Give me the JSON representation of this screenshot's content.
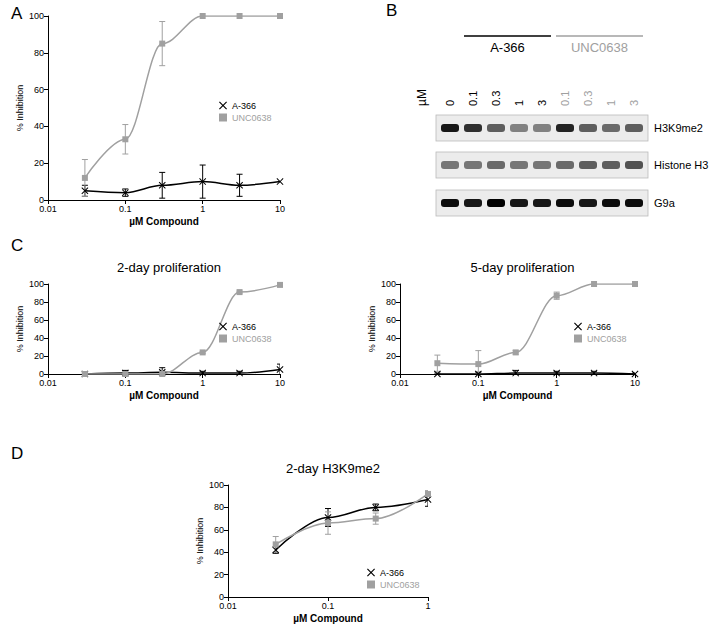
{
  "chart_data": [
    {
      "panel": "A",
      "type": "line",
      "x_label": "µM Compound",
      "y_label": "% Inhibition",
      "log": "x",
      "grid": false,
      "legend": "right",
      "xlim": [
        0.01,
        10
      ],
      "xticks": [
        0.01,
        0.1,
        1,
        10
      ],
      "ylim": [
        0,
        100
      ],
      "yticks": [
        0,
        20,
        40,
        60,
        80,
        100
      ],
      "x": [
        0.03,
        0.1,
        0.3,
        1,
        3,
        10
      ],
      "series": [
        {
          "name": "A-366",
          "color": "#000000",
          "marker": "x",
          "line_style": "solid",
          "values": [
            5,
            4,
            8,
            10,
            8,
            10
          ],
          "error": [
            3,
            2,
            7,
            9,
            6,
            0
          ]
        },
        {
          "name": "UNC0638",
          "color": "#a0a0a0",
          "marker": "square",
          "line_style": "solid",
          "values": [
            12,
            33,
            85,
            100,
            100,
            100
          ],
          "error": [
            10,
            8,
            12,
            0,
            0,
            0
          ]
        }
      ]
    },
    {
      "panel": "C",
      "type": "line",
      "title": "2-day proliferation",
      "x_label": "µM Compound",
      "y_label": "% Inhibition",
      "log": "x",
      "grid": false,
      "legend": "right",
      "xlim": [
        0.01,
        10
      ],
      "xticks": [
        0.01,
        0.1,
        1,
        10
      ],
      "ylim": [
        0,
        100
      ],
      "yticks": [
        0,
        20,
        40,
        60,
        80,
        100
      ],
      "x": [
        0.03,
        0.1,
        0.3,
        1,
        3,
        10
      ],
      "series": [
        {
          "name": "A-366",
          "color": "#000000",
          "marker": "x",
          "line_style": "solid",
          "values": [
            0,
            1,
            2,
            1,
            1,
            5
          ],
          "error": [
            1,
            3,
            5,
            2,
            2,
            6
          ]
        },
        {
          "name": "UNC0638",
          "color": "#a0a0a0",
          "marker": "square",
          "line_style": "solid",
          "values": [
            0,
            0,
            0,
            24,
            91,
            99
          ],
          "error": [
            2,
            2,
            4,
            1,
            1,
            1
          ]
        }
      ]
    },
    {
      "type": "line",
      "title": "5-day proliferation",
      "x_label": "µM Compound",
      "y_label": "% Inhibition",
      "log": "x",
      "grid": false,
      "legend": "right",
      "xlim": [
        0.01,
        10
      ],
      "xticks": [
        0.01,
        0.1,
        1,
        10
      ],
      "ylim": [
        0,
        100
      ],
      "yticks": [
        0,
        20,
        40,
        60,
        80,
        100
      ],
      "x": [
        0.03,
        0.1,
        0.3,
        1,
        3,
        10
      ],
      "series": [
        {
          "name": "A-366",
          "color": "#000000",
          "marker": "x",
          "line_style": "solid",
          "values": [
            0,
            0,
            1,
            1,
            1,
            0
          ],
          "error": [
            1,
            2,
            3,
            2,
            2,
            1
          ]
        },
        {
          "name": "UNC0638",
          "color": "#a0a0a0",
          "marker": "square",
          "line_style": "solid",
          "values": [
            12,
            11,
            24,
            87,
            100,
            100
          ],
          "error": [
            9,
            15,
            2,
            4,
            0,
            0
          ]
        }
      ]
    },
    {
      "panel": "D",
      "type": "line",
      "title": "2-day H3K9me2",
      "x_label": "µM Compound",
      "y_label": "% Inhibition",
      "log": "x",
      "grid": false,
      "legend": "lower right",
      "xlim": [
        0.01,
        1
      ],
      "xticks": [
        0.01,
        0.1,
        1
      ],
      "ylim": [
        0,
        100
      ],
      "yticks": [
        0,
        20,
        40,
        60,
        80,
        100
      ],
      "x": [
        0.03,
        0.1,
        0.3,
        1
      ],
      "series": [
        {
          "name": "A-366",
          "color": "#000000",
          "marker": "x",
          "line_style": "solid",
          "values": [
            42,
            71,
            80,
            87
          ],
          "error": [
            3,
            8,
            3,
            6
          ]
        },
        {
          "name": "UNC0638",
          "color": "#a0a0a0",
          "marker": "square",
          "line_style": "solid",
          "values": [
            47,
            66,
            70,
            92
          ],
          "error": [
            7,
            10,
            5,
            3
          ]
        }
      ]
    }
  ],
  "blot": {
    "panel": "B",
    "unit_label": "µM",
    "control_lane": "0",
    "groups": [
      {
        "name": "A-366",
        "color": "#000000",
        "lanes": [
          "0.1",
          "0.3",
          "1",
          "3"
        ]
      },
      {
        "name": "UNC0638",
        "color": "#a0a0a0",
        "lanes": [
          "0.1",
          "0.3",
          "1",
          "3"
        ]
      }
    ],
    "rows": [
      {
        "name": "H3K9me2",
        "intensity": [
          0.9,
          0.8,
          0.6,
          0.45,
          0.45,
          0.85,
          0.6,
          0.55,
          0.6
        ]
      },
      {
        "name": "Histone H3",
        "intensity": [
          0.5,
          0.5,
          0.55,
          0.5,
          0.5,
          0.55,
          0.6,
          0.6,
          0.65
        ]
      },
      {
        "name": "G9a",
        "intensity": [
          0.95,
          0.9,
          1,
          0.9,
          0.9,
          0.95,
          0.9,
          0.95,
          0.95
        ]
      }
    ]
  }
}
